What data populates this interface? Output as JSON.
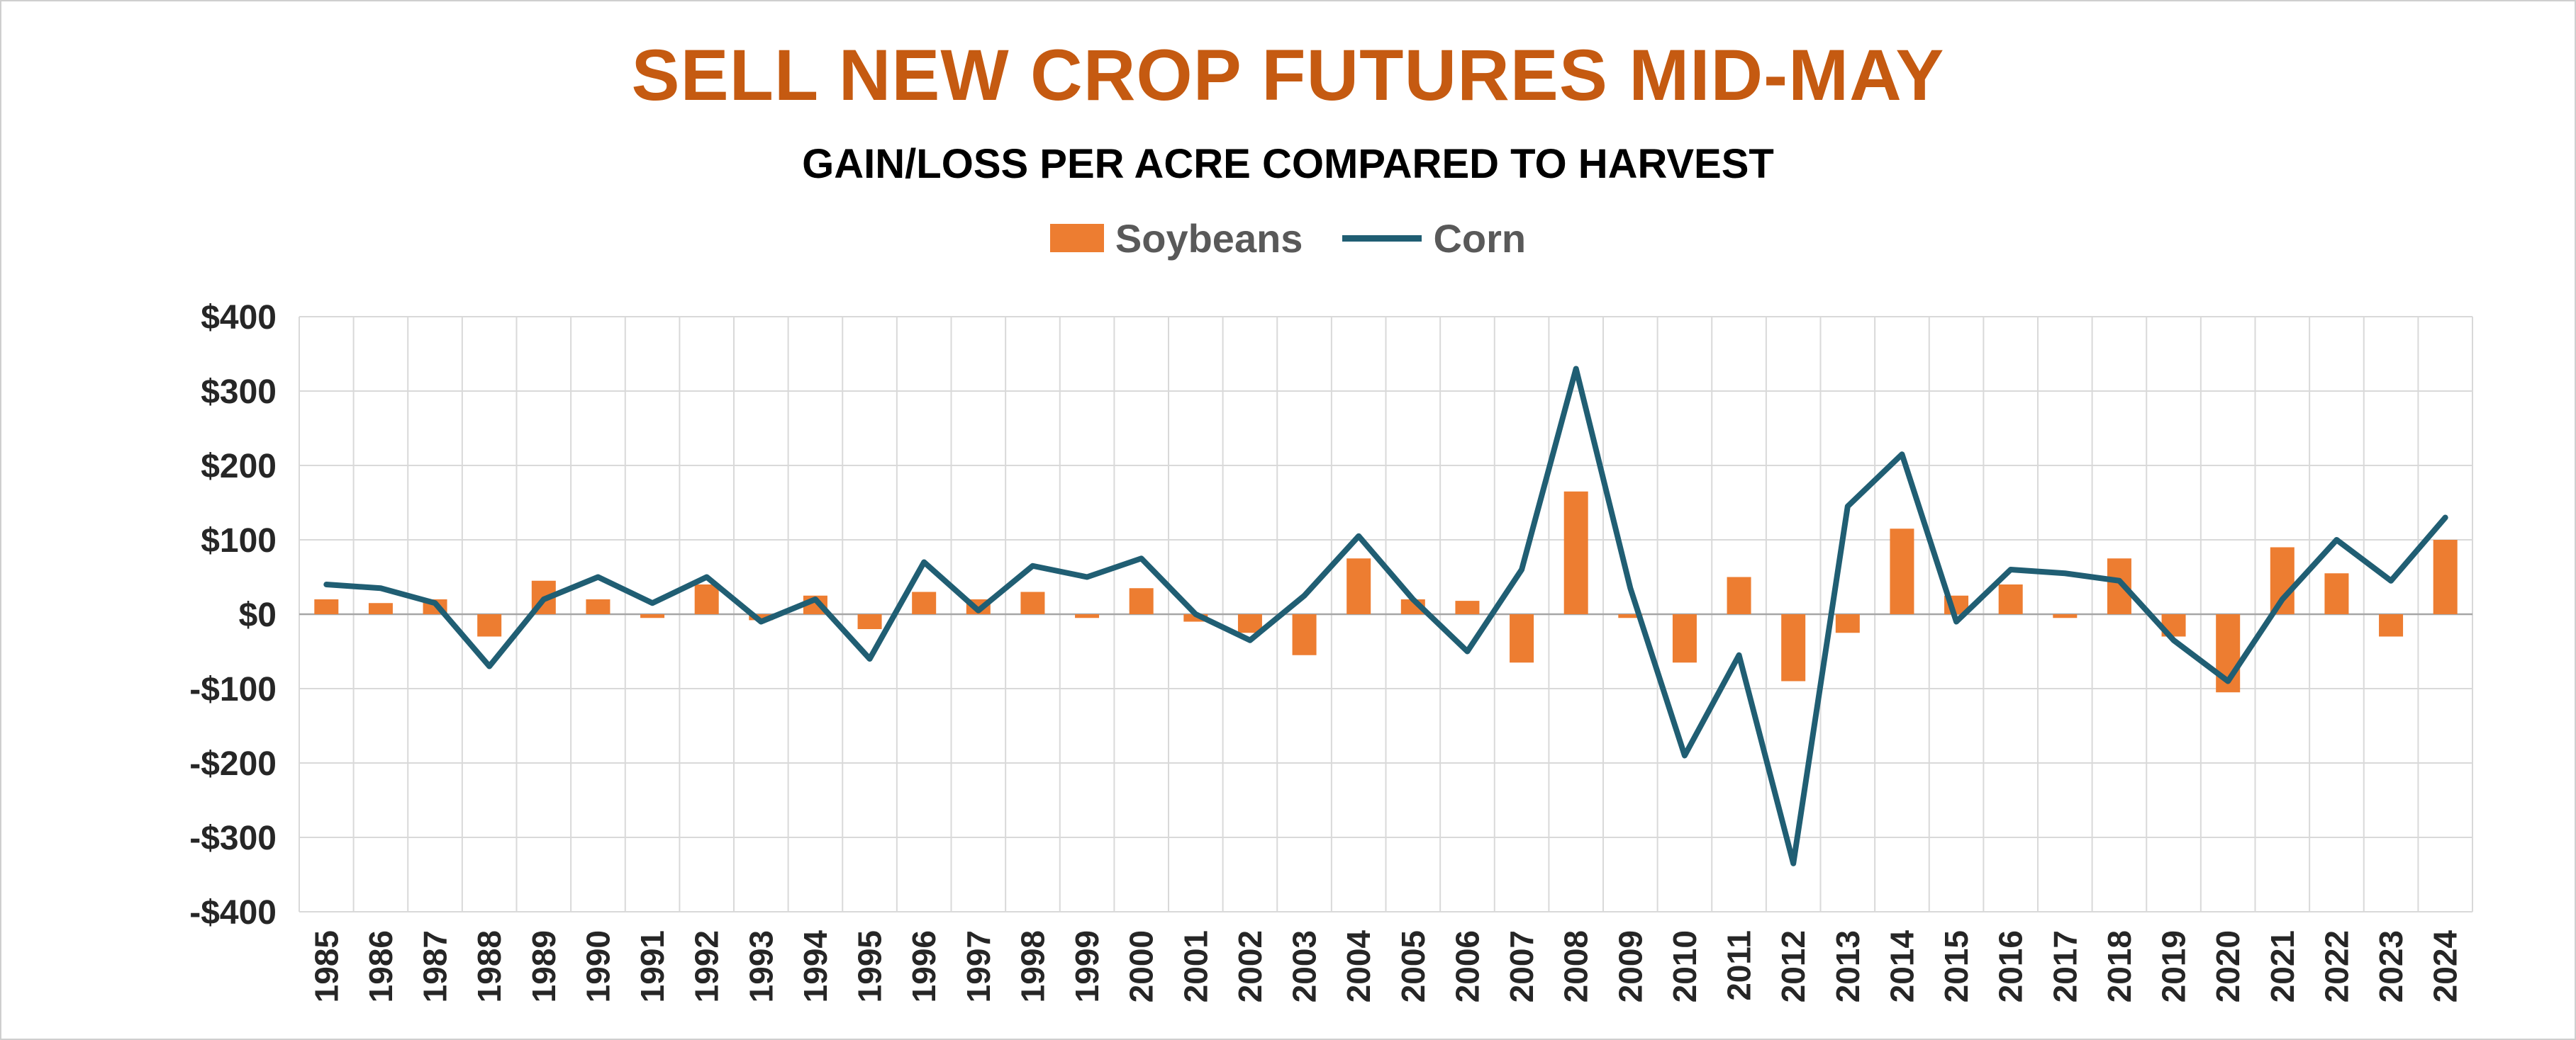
{
  "page": {
    "background": "#FFFFFF",
    "border_color": "#CFCFCF"
  },
  "chart_data": {
    "type": "combo",
    "title": "SELL NEW CROP FUTURES MID-MAY",
    "title_color": "#C55A11",
    "subtitle": "GAIN/LOSS PER ACRE COMPARED TO HARVEST",
    "legend_position": "top",
    "grid": true,
    "xlabel": "",
    "ylabel": "",
    "ylim": [
      -400,
      400
    ],
    "ytick_step": 100,
    "ytick_labels": [
      "-$400",
      "-$300",
      "-$200",
      "-$100",
      "$0",
      "$100",
      "$200",
      "$300",
      "$400"
    ],
    "grid_color": "#D9D9D9",
    "zero_line_color": "#A6A6A6",
    "tick_label_color": "#262626",
    "legend_label_color": "#595959",
    "categories": [
      "1985",
      "1986",
      "1987",
      "1988",
      "1989",
      "1990",
      "1991",
      "1992",
      "1993",
      "1994",
      "1995",
      "1996",
      "1997",
      "1998",
      "1999",
      "2000",
      "2001",
      "2002",
      "2003",
      "2004",
      "2005",
      "2006",
      "2007",
      "2008",
      "2009",
      "2010",
      "2011",
      "2012",
      "2013",
      "2014",
      "2015",
      "2016",
      "2017",
      "2018",
      "2019",
      "2020",
      "2021",
      "2022",
      "2023",
      "2024"
    ],
    "series": [
      {
        "name": "Soybeans",
        "type": "bar",
        "color": "#ED7D31",
        "values": [
          20,
          15,
          20,
          -30,
          45,
          20,
          -5,
          40,
          -8,
          25,
          -20,
          30,
          20,
          30,
          -5,
          35,
          -10,
          -25,
          -55,
          75,
          20,
          18,
          -65,
          165,
          -5,
          -65,
          50,
          -90,
          -25,
          115,
          25,
          40,
          -5,
          75,
          -30,
          -105,
          90,
          55,
          -30,
          100
        ]
      },
      {
        "name": "Corn",
        "type": "line",
        "color": "#205E73",
        "values": [
          40,
          35,
          15,
          -70,
          20,
          50,
          15,
          50,
          -10,
          20,
          -60,
          70,
          5,
          65,
          50,
          75,
          0,
          -35,
          25,
          105,
          20,
          -50,
          60,
          330,
          35,
          -190,
          -55,
          -335,
          145,
          215,
          -10,
          60,
          55,
          45,
          -35,
          -90,
          20,
          100,
          45,
          130
        ]
      }
    ]
  }
}
